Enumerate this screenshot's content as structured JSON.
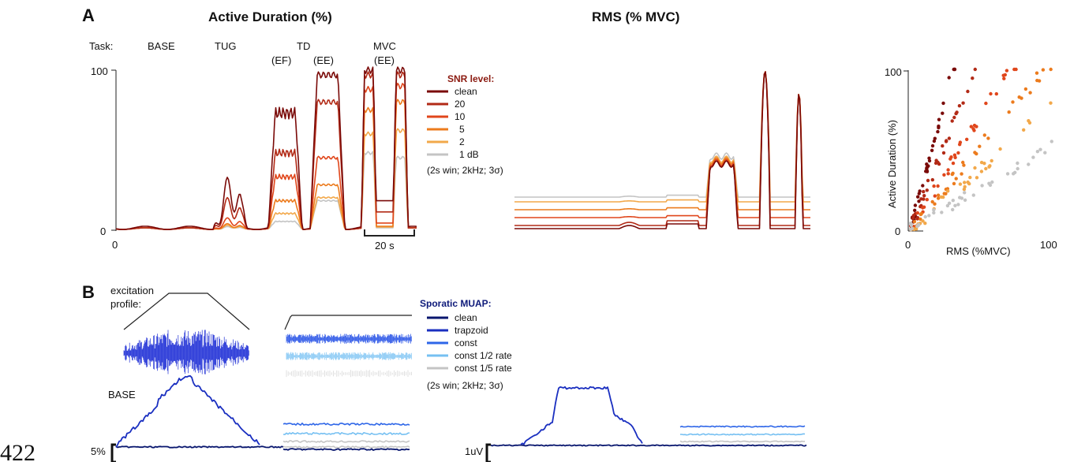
{
  "line_number": "422",
  "panel_a": {
    "label": "A",
    "title_left": "Active Duration (%)",
    "title_right": "RMS (% MVC)",
    "task_label": "Task:",
    "tasks": [
      "BASE",
      "TUG",
      "TD",
      "(EF)",
      "(EE)",
      "MVC",
      "(EE)"
    ],
    "y_ticks": [
      "100",
      "0"
    ],
    "x_tick": "0",
    "scale_bar": "20 s",
    "legend": {
      "title": "SNR level:",
      "entries": [
        "clean",
        "20",
        "10",
        "5",
        "2",
        "1 dB"
      ],
      "colors": [
        "#7a0a08",
        "#b22a16",
        "#e0461b",
        "#ec7b1d",
        "#f2a84a",
        "#c4c4c4"
      ],
      "note": "(2s win; 2kHz; 3σ)"
    },
    "scatter": {
      "ylabel": "Active Duration (%)",
      "xlabel": "RMS (%MVC)",
      "y_ticks": [
        "100",
        "0"
      ],
      "x_ticks": [
        "0",
        "100"
      ]
    }
  },
  "panel_b": {
    "label": "B",
    "excitation_label_1": "excitation",
    "excitation_label_2": "profile:",
    "base_label": "BASE",
    "scale_left": "5%",
    "scale_right": "1uV",
    "legend": {
      "title": "Sporatic MUAP:",
      "entries": [
        "clean",
        "trapzoid",
        "const",
        "const 1/2 rate",
        "const 1/5 rate"
      ],
      "colors": [
        "#08166e",
        "#1a2fc0",
        "#2e66e8",
        "#76c0f2",
        "#c4c4c4"
      ],
      "note": "(2s win; 2kHz; 3σ)"
    }
  },
  "chart_data": [
    {
      "type": "line",
      "title": "Active Duration (%)",
      "xlabel": "",
      "ylabel": "",
      "ylim": [
        0,
        100
      ],
      "legend": "right",
      "series": [
        {
          "name": "clean",
          "segment_peaks": [
            2,
            36,
            73,
            97,
            100,
            100
          ]
        },
        {
          "name": "20",
          "segment_peaks": [
            1,
            22,
            48,
            80,
            97,
            97
          ]
        },
        {
          "name": "10",
          "segment_peaks": [
            1,
            8,
            33,
            45,
            88,
            90
          ]
        },
        {
          "name": "5",
          "segment_peaks": [
            1,
            4,
            18,
            28,
            75,
            80
          ]
        },
        {
          "name": "2",
          "segment_peaks": [
            1,
            3,
            10,
            20,
            60,
            62
          ]
        },
        {
          "name": "1 dB",
          "segment_peaks": [
            1,
            2,
            5,
            18,
            48,
            45
          ]
        }
      ]
    },
    {
      "type": "line",
      "title": "RMS (% MVC)",
      "xlabel": "",
      "ylabel": "",
      "legend": "none",
      "series": [
        {
          "name": "clean",
          "levels": {
            "base": 0,
            "td_ee": 41,
            "mvc": 100
          }
        },
        {
          "name": "20",
          "levels": {
            "base": 2,
            "td_ee": 41,
            "mvc": 100
          }
        },
        {
          "name": "10",
          "levels": {
            "base": 7,
            "td_ee": 42,
            "mvc": 100
          }
        },
        {
          "name": "5",
          "levels": {
            "base": 12,
            "td_ee": 43,
            "mvc": 100
          }
        },
        {
          "name": "2",
          "levels": {
            "base": 17,
            "td_ee": 44,
            "mvc": 100
          }
        },
        {
          "name": "1 dB",
          "levels": {
            "base": 20,
            "td_ee": 46,
            "mvc": 100
          }
        }
      ]
    },
    {
      "type": "scatter",
      "title": "",
      "xlabel": "RMS (%MVC)",
      "ylabel": "Active Duration (%)",
      "xlim": [
        0,
        100
      ],
      "ylim": [
        0,
        100
      ],
      "series": [
        {
          "name": "clean",
          "slope": 3.5
        },
        {
          "name": "20",
          "slope": 2.3
        },
        {
          "name": "10",
          "slope": 1.5
        },
        {
          "name": "5",
          "slope": 1.1
        },
        {
          "name": "2",
          "slope": 0.8
        },
        {
          "name": "1 dB",
          "slope": 0.55
        }
      ]
    },
    {
      "type": "line",
      "title": "",
      "xlabel": "",
      "ylabel": "Active Duration (%)",
      "series": [
        {
          "name": "clean",
          "level": 2
        },
        {
          "name": "trapzoid",
          "peak": 30
        },
        {
          "name": "const",
          "level": 11
        },
        {
          "name": "const 1/2 rate",
          "level": 8
        },
        {
          "name": "const 1/5 rate",
          "level": 5
        }
      ]
    },
    {
      "type": "line",
      "title": "",
      "xlabel": "",
      "ylabel": "RMS",
      "series": [
        {
          "name": "clean",
          "level": 1
        },
        {
          "name": "trapzoid",
          "peak": 7
        },
        {
          "name": "const",
          "level": 3
        },
        {
          "name": "const 1/2 rate",
          "level": 2.5
        },
        {
          "name": "const 1/5 rate",
          "level": 2
        }
      ]
    }
  ]
}
